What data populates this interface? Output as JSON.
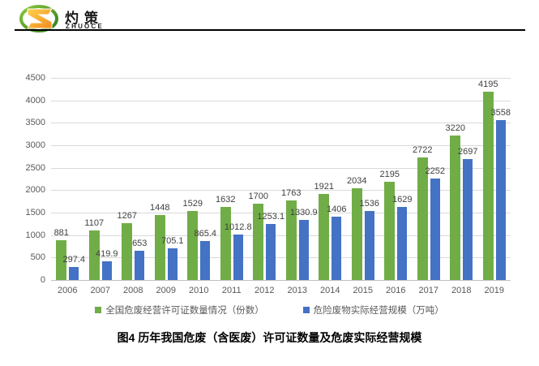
{
  "header": {
    "logo_text": "灼策",
    "logo_subtext": "ZHUOCE"
  },
  "chart_data": {
    "type": "bar",
    "title": "图4  历年我国危废（含医废）许可证数量及危废实际经营规模",
    "categories": [
      "2006",
      "2007",
      "2008",
      "2009",
      "2010",
      "2011",
      "2012",
      "2013",
      "2014",
      "2015",
      "2016",
      "2017",
      "2018",
      "2019"
    ],
    "series": [
      {
        "name": "全国危废经营许可证数量情况（份数）",
        "color": "#70AD47",
        "values": [
          881,
          1107,
          1267,
          1448,
          1529,
          1632,
          1700,
          1763,
          1921,
          2034,
          2195,
          2722,
          3220,
          4195
        ]
      },
      {
        "name": "危险废物实际经营规模（万吨）",
        "color": "#4472C4",
        "values": [
          297.4,
          419.9,
          653,
          705.1,
          865.4,
          1012.8,
          1253.1,
          1330.9,
          1406,
          1536,
          1629,
          2252,
          2697,
          3558
        ]
      }
    ],
    "ylim": [
      0,
      4500
    ],
    "ytick_step": 500,
    "grid": true,
    "legend_position": "bottom",
    "xlabel": "",
    "ylabel": ""
  },
  "colors": {
    "grid": "#D9D9D9",
    "axis": "#BFBFBF",
    "tick_text": "#595959",
    "data_label": "#404040",
    "logo_green": "#3a8a28",
    "logo_orange_light": "#ffd24d",
    "logo_orange_dark": "#f28a1e"
  }
}
